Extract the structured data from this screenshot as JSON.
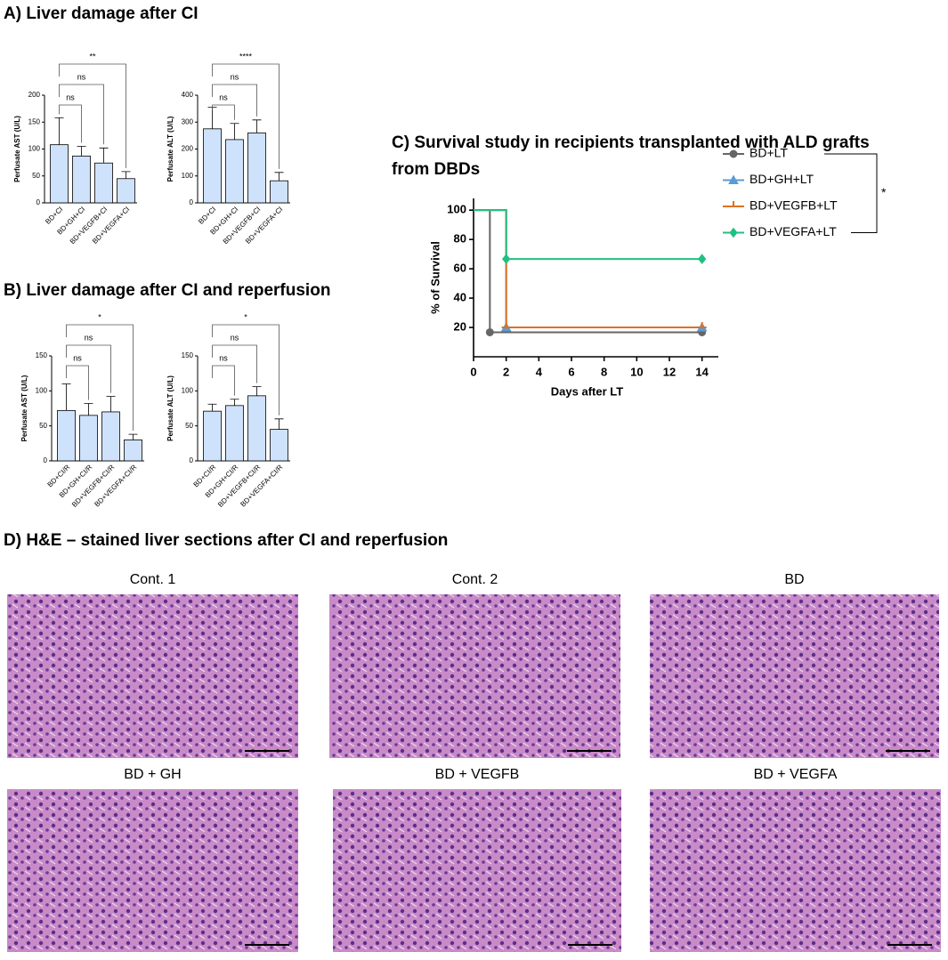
{
  "headings": [
    "A) Liver damage after CI",
    "B) Liver damage after  CI and reperfusion",
    "D) H&E – stained liver sections after CI and reperfusion"
  ],
  "chart_data": [
    {
      "type": "bar",
      "ylabel": "Perfusate AST (U/L)",
      "categories": [
        "BD+CI",
        "BD+GH+CI",
        "BD+VEGFB+CI",
        "BD+VEGFA+CI"
      ],
      "values": [
        108,
        87,
        74,
        45
      ],
      "errors": [
        50,
        18,
        28,
        13
      ],
      "color": "#cfe2fb",
      "ylim": [
        0,
        200
      ],
      "yticks": [
        0,
        50,
        100,
        150,
        200
      ],
      "annotations": [
        "ns",
        "ns",
        "**"
      ]
    },
    {
      "type": "bar",
      "ylabel": "Perfusate ALT (U/L)",
      "categories": [
        "BD+CI",
        "BD+GH+CI",
        "BD+VEGFB+CI",
        "BD+VEGFA+CI"
      ],
      "values": [
        275,
        235,
        260,
        82
      ],
      "errors": [
        80,
        60,
        48,
        31
      ],
      "color": "#cfe2fb",
      "ylim": [
        0,
        400
      ],
      "yticks": [
        0,
        100,
        200,
        300,
        400
      ],
      "annotations": [
        "ns",
        "ns",
        "****"
      ]
    },
    {
      "type": "bar",
      "ylabel": "Perfusate AST (U/L)",
      "categories": [
        "BD+CI/R",
        "BD+GH+CI/R",
        "BD+VEGFB+CI/R",
        "BD+VEGFA+CI/R"
      ],
      "values": [
        72,
        65,
        70,
        30
      ],
      "errors": [
        38,
        17,
        22,
        8
      ],
      "color": "#cfe2fb",
      "ylim": [
        0,
        150
      ],
      "yticks": [
        0,
        50,
        100,
        150
      ],
      "annotations": [
        "ns",
        "ns",
        "*"
      ]
    },
    {
      "type": "bar",
      "ylabel": "Perfusate ALT (U/L)",
      "categories": [
        "BD+CI/R",
        "BD+GH+CI/R",
        "BD+VEGFB+CI/R",
        "BD+VEGFA+CI/R"
      ],
      "values": [
        71,
        79,
        93,
        45
      ],
      "errors": [
        10,
        9,
        13,
        15
      ],
      "color": "#cfe2fb",
      "ylim": [
        0,
        150
      ],
      "yticks": [
        0,
        50,
        100,
        150
      ],
      "annotations": [
        "ns",
        "ns",
        "*"
      ]
    },
    {
      "type": "line",
      "step": true,
      "title": [
        "C) Survival study in recipients transplanted with ALD grafts",
        "from DBDs"
      ],
      "xlabel": "Days after LT",
      "ylabel": "% of Survival",
      "xlim": [
        0,
        15
      ],
      "xticks": [
        0,
        2,
        4,
        6,
        8,
        10,
        12,
        14
      ],
      "ylim": [
        0,
        108
      ],
      "yticks": [
        20,
        40,
        60,
        80,
        100
      ],
      "legend": "right",
      "annotation": "*",
      "series": [
        {
          "name": "BD+LT",
          "color": "#666666",
          "marker": "circle",
          "x": [
            0,
            1,
            14
          ],
          "values": [
            100,
            16.7,
            16.7
          ]
        },
        {
          "name": "BD+GH+LT",
          "color": "#5b9bd5",
          "marker": "triangle",
          "x": [
            0,
            2,
            14
          ],
          "values": [
            100,
            20,
            20
          ]
        },
        {
          "name": "BD+VEGFB+LT",
          "color": "#e07020",
          "marker": "tick",
          "x": [
            0,
            2,
            14
          ],
          "values": [
            100,
            20,
            20
          ]
        },
        {
          "name": "BD+VEGFA+LT",
          "color": "#20c080",
          "marker": "diamond",
          "x": [
            0,
            2,
            14
          ],
          "values": [
            100,
            66.7,
            66.7
          ]
        }
      ]
    }
  ],
  "images": [
    {
      "label": "Cont. 1"
    },
    {
      "label": "Cont. 2"
    },
    {
      "label": "BD"
    },
    {
      "label": "BD + GH"
    },
    {
      "label": "BD + VEGFB"
    },
    {
      "label": "BD + VEGFA"
    }
  ]
}
